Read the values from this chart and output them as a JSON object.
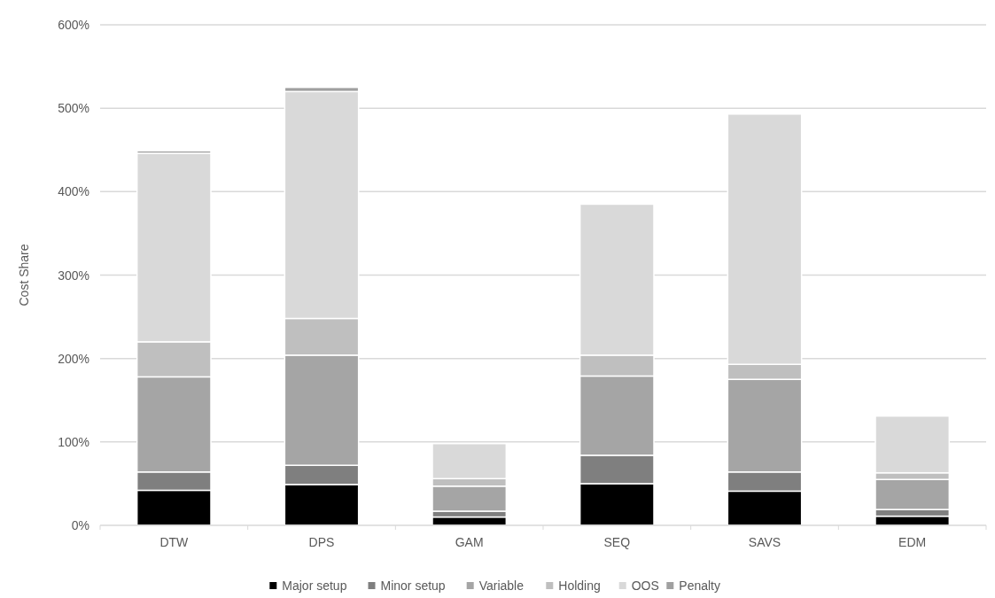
{
  "chart_data": {
    "type": "bar",
    "stacked": true,
    "ylabel": "Cost Share",
    "categories": [
      "DTW",
      "DPS",
      "GAM",
      "SEQ",
      "SAVS",
      "EDM"
    ],
    "series": [
      {
        "name": "Major setup",
        "color": "#000000",
        "values": [
          42,
          49,
          10,
          50,
          41,
          11
        ]
      },
      {
        "name": "Minor setup",
        "color": "#7f7f7f",
        "values": [
          22,
          23,
          7,
          34,
          23,
          8
        ]
      },
      {
        "name": "Variable",
        "color": "#a5a5a5",
        "values": [
          114,
          132,
          30,
          95,
          111,
          36
        ]
      },
      {
        "name": "Holding",
        "color": "#bfbfbf",
        "values": [
          42,
          44,
          9,
          25,
          18,
          8
        ]
      },
      {
        "name": "OOS",
        "color": "#d9d9d9",
        "values": [
          226,
          272,
          42,
          181,
          300,
          68
        ]
      },
      {
        "name": "Penalty",
        "color": "#a0a0a0",
        "values": [
          3,
          5,
          0,
          0,
          0,
          0
        ]
      }
    ],
    "ylim": [
      0,
      600
    ],
    "yticks": [
      {
        "value": 0,
        "label": "0%"
      },
      {
        "value": 100,
        "label": "100%"
      },
      {
        "value": 200,
        "label": "200%"
      },
      {
        "value": 300,
        "label": "300%"
      },
      {
        "value": 400,
        "label": "400%"
      },
      {
        "value": 500,
        "label": "500%"
      },
      {
        "value": 600,
        "label": "600%"
      }
    ],
    "grid": "y",
    "legend": "bottom"
  }
}
